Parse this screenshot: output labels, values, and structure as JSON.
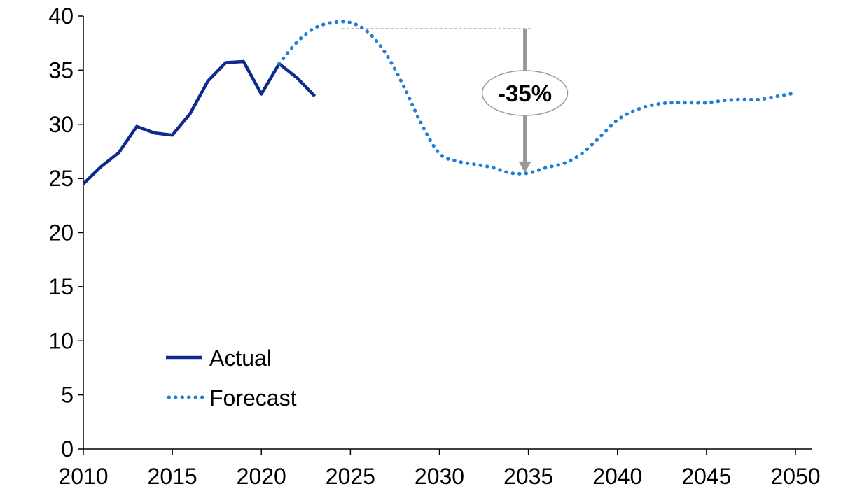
{
  "chart_data": {
    "type": "line",
    "title": "",
    "xlabel": "",
    "ylabel": "",
    "xlim": [
      2010,
      2050
    ],
    "ylim": [
      0,
      40
    ],
    "xticks": [
      2010,
      2015,
      2020,
      2025,
      2030,
      2035,
      2040,
      2045,
      2050
    ],
    "yticks": [
      0,
      5,
      10,
      15,
      20,
      25,
      30,
      35,
      40
    ],
    "grid": false,
    "legend_position": "bottom-left",
    "series": [
      {
        "name": "Actual",
        "style": "solid",
        "color": "#0e2a8c",
        "x": [
          2010,
          2011,
          2012,
          2013,
          2014,
          2015,
          2016,
          2017,
          2018,
          2019,
          2020,
          2021,
          2022,
          2023
        ],
        "y": [
          24.5,
          26.1,
          27.4,
          29.8,
          29.2,
          29.0,
          31.0,
          34.0,
          35.7,
          35.8,
          32.8,
          35.6,
          34.3,
          32.6
        ]
      },
      {
        "name": "Forecast",
        "style": "dotted",
        "color": "#1e7dd6",
        "x": [
          2021,
          2022,
          2023,
          2024,
          2025,
          2026,
          2027,
          2028,
          2029,
          2030,
          2031,
          2032,
          2033,
          2034,
          2035,
          2036,
          2037,
          2038,
          2039,
          2040,
          2041,
          2042,
          2043,
          2044,
          2045,
          2046,
          2047,
          2048,
          2049,
          2050
        ],
        "y": [
          35.6,
          37.6,
          38.9,
          39.4,
          39.4,
          38.5,
          36.5,
          33.5,
          30.0,
          27.3,
          26.6,
          26.3,
          26.0,
          25.5,
          25.5,
          26.0,
          26.4,
          27.3,
          28.8,
          30.4,
          31.3,
          31.8,
          32.0,
          32.0,
          32.0,
          32.2,
          32.3,
          32.3,
          32.6,
          32.9
        ]
      }
    ],
    "annotations": [
      {
        "text": "-35%",
        "from": [
          2024.5,
          39.4
        ],
        "to": [
          2034.5,
          25.4
        ]
      }
    ]
  }
}
